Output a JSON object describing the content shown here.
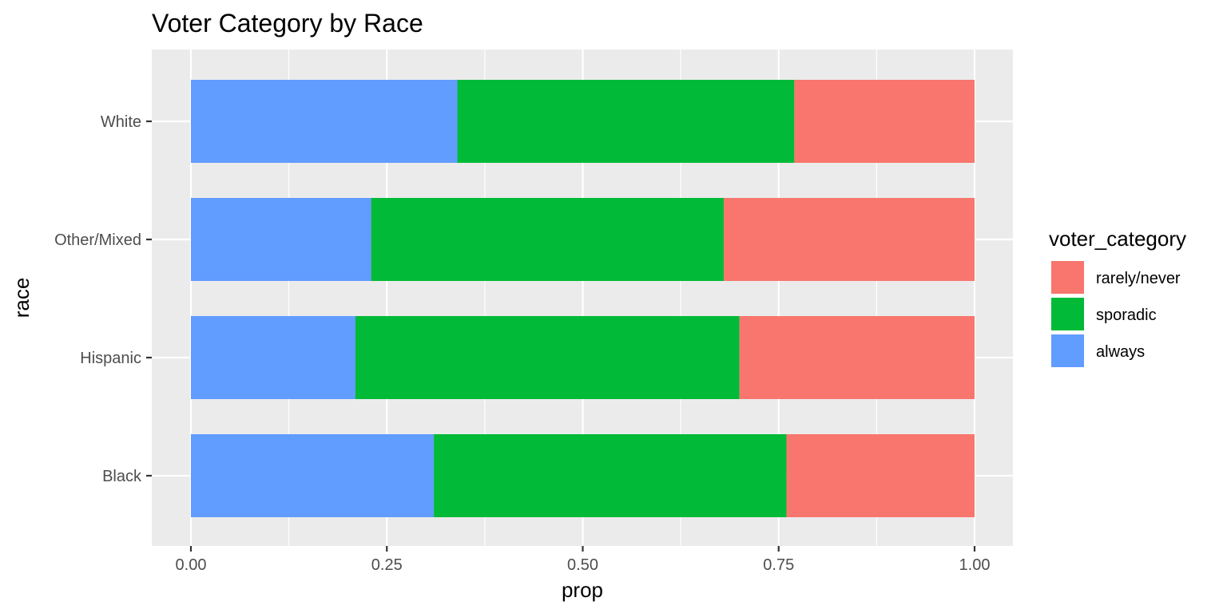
{
  "chart_data": {
    "type": "bar",
    "orientation": "horizontal",
    "stacked": true,
    "title": "Voter Category by Race",
    "xlabel": "prop",
    "ylabel": "race",
    "xlim": [
      0,
      1
    ],
    "x_ticks": [
      0,
      0.25,
      0.5,
      0.75,
      1
    ],
    "x_tick_labels": [
      "0.00",
      "0.25",
      "0.50",
      "0.75",
      "1.00"
    ],
    "categories": [
      "Black",
      "Hispanic",
      "Other/Mixed",
      "White"
    ],
    "series": [
      {
        "name": "always",
        "color": "#619CFF",
        "values": [
          0.31,
          0.21,
          0.23,
          0.34
        ]
      },
      {
        "name": "sporadic",
        "color": "#00BA38",
        "values": [
          0.45,
          0.49,
          0.45,
          0.43
        ]
      },
      {
        "name": "rarely/never",
        "color": "#F8766D",
        "values": [
          0.24,
          0.3,
          0.32,
          0.23
        ]
      }
    ],
    "legend": {
      "title": "voter_category",
      "position": "right",
      "order": [
        "rarely/never",
        "sporadic",
        "always"
      ]
    },
    "grid": true,
    "panel_background": "#EBEBEB"
  }
}
